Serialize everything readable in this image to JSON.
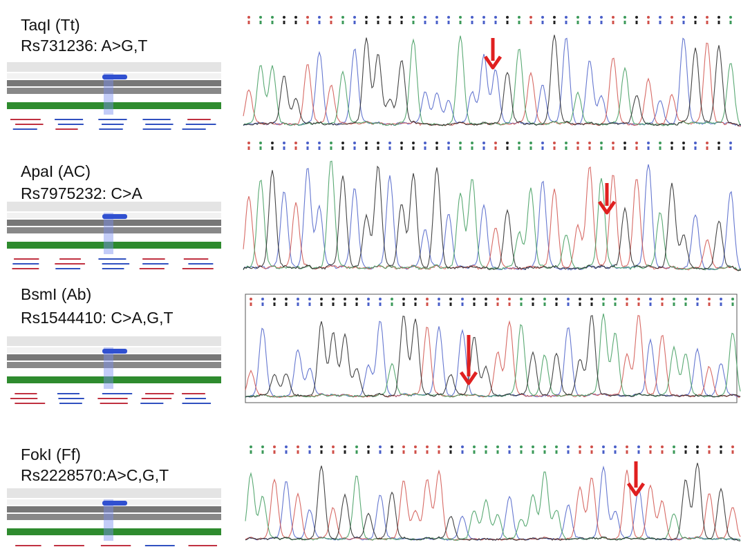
{
  "panels": [
    {
      "title": "TaqI (Tt)",
      "snp": "Rs731236: A>G,T"
    },
    {
      "title": "ApaI (AC)",
      "snp": "Rs7975232: C>A"
    },
    {
      "title": "BsmI (Ab)",
      "snp": "Rs1544410: C>A,G,T"
    },
    {
      "title": "FokI (Ff)",
      "snp": "Rs2228570:A>C,G,T"
    }
  ]
}
